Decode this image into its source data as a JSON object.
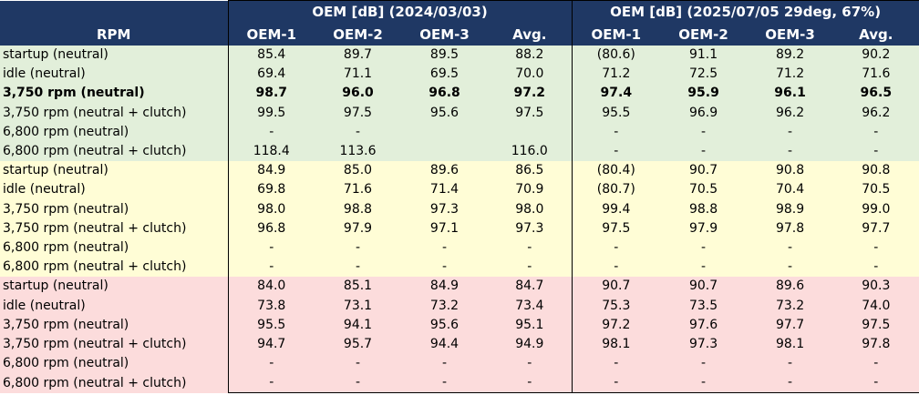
{
  "header": {
    "rpm_label": "RPM",
    "group1_title": "OEM [dB] (2024/03/03)",
    "group2_title": "OEM [dB] (2025/07/05 29deg, 67%)",
    "columns": [
      "OEM-1",
      "OEM-2",
      "OEM-3",
      "Avg.",
      "OEM-1",
      "OEM-2",
      "OEM-3",
      "Avg."
    ]
  },
  "rows": [
    {
      "label": "startup (neutral)",
      "group": 1,
      "bold": false,
      "v": [
        "85.4",
        "89.7",
        "89.5",
        "88.2",
        "(80.6)",
        "91.1",
        "89.2",
        "90.2"
      ]
    },
    {
      "label": "idle (neutral)",
      "group": 1,
      "bold": false,
      "v": [
        "69.4",
        "71.1",
        "69.5",
        "70.0",
        "71.2",
        "72.5",
        "71.2",
        "71.6"
      ]
    },
    {
      "label": "3,750 rpm (neutral)",
      "group": 1,
      "bold": true,
      "v": [
        "98.7",
        "96.0",
        "96.8",
        "97.2",
        "97.4",
        "95.9",
        "96.1",
        "96.5"
      ]
    },
    {
      "label": "3,750 rpm (neutral + clutch)",
      "group": 1,
      "bold": false,
      "v": [
        "99.5",
        "97.5",
        "95.6",
        "97.5",
        "95.5",
        "96.9",
        "96.2",
        "96.2"
      ]
    },
    {
      "label": "6,800 rpm (neutral)",
      "group": 1,
      "bold": false,
      "v": [
        "-",
        "-",
        "",
        "",
        "-",
        "-",
        "-",
        "-"
      ]
    },
    {
      "label": "6,800 rpm (neutral + clutch)",
      "group": 1,
      "bold": false,
      "v": [
        "118.4",
        "113.6",
        "",
        "116.0",
        "-",
        "-",
        "-",
        "-"
      ]
    },
    {
      "label": "startup (neutral)",
      "group": 2,
      "bold": false,
      "v": [
        "84.9",
        "85.0",
        "89.6",
        "86.5",
        "(80.4)",
        "90.7",
        "90.8",
        "90.8"
      ]
    },
    {
      "label": "idle (neutral)",
      "group": 2,
      "bold": false,
      "v": [
        "69.8",
        "71.6",
        "71.4",
        "70.9",
        "(80.7)",
        "70.5",
        "70.4",
        "70.5"
      ]
    },
    {
      "label": "3,750 rpm (neutral)",
      "group": 2,
      "bold": false,
      "v": [
        "98.0",
        "98.8",
        "97.3",
        "98.0",
        "99.4",
        "98.8",
        "98.9",
        "99.0"
      ]
    },
    {
      "label": "3,750 rpm (neutral + clutch)",
      "group": 2,
      "bold": false,
      "v": [
        "96.8",
        "97.9",
        "97.1",
        "97.3",
        "97.5",
        "97.9",
        "97.8",
        "97.7"
      ]
    },
    {
      "label": "6,800 rpm (neutral)",
      "group": 2,
      "bold": false,
      "v": [
        "-",
        "-",
        "-",
        "-",
        "-",
        "-",
        "-",
        "-"
      ]
    },
    {
      "label": "6,800 rpm (neutral + clutch)",
      "group": 2,
      "bold": false,
      "v": [
        "-",
        "-",
        "-",
        "-",
        "-",
        "-",
        "-",
        "-"
      ]
    },
    {
      "label": "startup (neutral)",
      "group": 3,
      "bold": false,
      "v": [
        "84.0",
        "85.1",
        "84.9",
        "84.7",
        "90.7",
        "90.7",
        "89.6",
        "90.3"
      ]
    },
    {
      "label": "idle (neutral)",
      "group": 3,
      "bold": false,
      "v": [
        "73.8",
        "73.1",
        "73.2",
        "73.4",
        "75.3",
        "73.5",
        "73.2",
        "74.0"
      ]
    },
    {
      "label": "3,750 rpm (neutral)",
      "group": 3,
      "bold": false,
      "v": [
        "95.5",
        "94.1",
        "95.6",
        "95.1",
        "97.2",
        "97.6",
        "97.7",
        "97.5"
      ]
    },
    {
      "label": "3,750 rpm (neutral + clutch)",
      "group": 3,
      "bold": false,
      "v": [
        "94.7",
        "95.7",
        "94.4",
        "94.9",
        "98.1",
        "97.3",
        "98.1",
        "97.8"
      ]
    },
    {
      "label": "6,800 rpm (neutral)",
      "group": 3,
      "bold": false,
      "v": [
        "-",
        "-",
        "-",
        "-",
        "-",
        "-",
        "-",
        "-"
      ]
    },
    {
      "label": "6,800 rpm (neutral + clutch)",
      "group": 3,
      "bold": false,
      "v": [
        "-",
        "-",
        "-",
        "-",
        "-",
        "-",
        "-",
        "-"
      ]
    }
  ],
  "colors": {
    "header_bg": "#1f3864",
    "group1_bg": "#e2efda",
    "group2_bg": "#fffdd6",
    "group3_bg": "#fcdcdc"
  }
}
